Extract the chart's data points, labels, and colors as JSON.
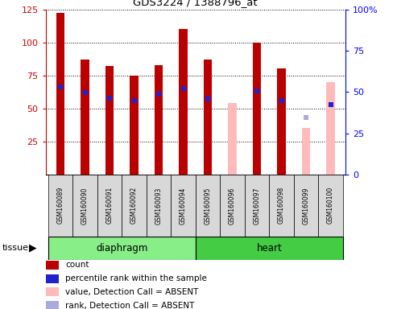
{
  "title": "GDS3224 / 1388796_at",
  "samples": [
    "GSM160089",
    "GSM160090",
    "GSM160091",
    "GSM160092",
    "GSM160093",
    "GSM160094",
    "GSM160095",
    "GSM160096",
    "GSM160097",
    "GSM160098",
    "GSM160099",
    "GSM160100"
  ],
  "count_values": [
    122,
    87,
    82,
    75,
    83,
    110,
    87,
    null,
    100,
    80,
    null,
    null
  ],
  "absent_values": [
    null,
    null,
    null,
    null,
    null,
    null,
    null,
    54,
    null,
    null,
    35,
    70
  ],
  "percentile_rank": [
    66,
    62,
    58,
    56,
    61,
    65,
    57,
    null,
    63,
    56,
    null,
    53
  ],
  "absent_rank_marker": [
    null,
    null,
    null,
    null,
    null,
    null,
    null,
    null,
    null,
    null,
    43,
    null
  ],
  "bar_color_present": "#bb0000",
  "bar_color_absent": "#ffbbbb",
  "blue_color": "#2222cc",
  "blue_absent_color": "#aaaadd",
  "diaphragm_color": "#88ee88",
  "heart_color": "#44cc44",
  "ylim_left": [
    0,
    125
  ],
  "ylim_right": [
    0,
    100
  ],
  "left_yticks": [
    25,
    50,
    75,
    100,
    125
  ],
  "right_yticks": [
    0,
    25,
    50,
    75,
    100
  ],
  "bar_width": 0.35,
  "legend_labels": [
    "count",
    "percentile rank within the sample",
    "value, Detection Call = ABSENT",
    "rank, Detection Call = ABSENT"
  ],
  "legend_colors": [
    "#bb0000",
    "#2222cc",
    "#ffbbbb",
    "#aaaadd"
  ]
}
